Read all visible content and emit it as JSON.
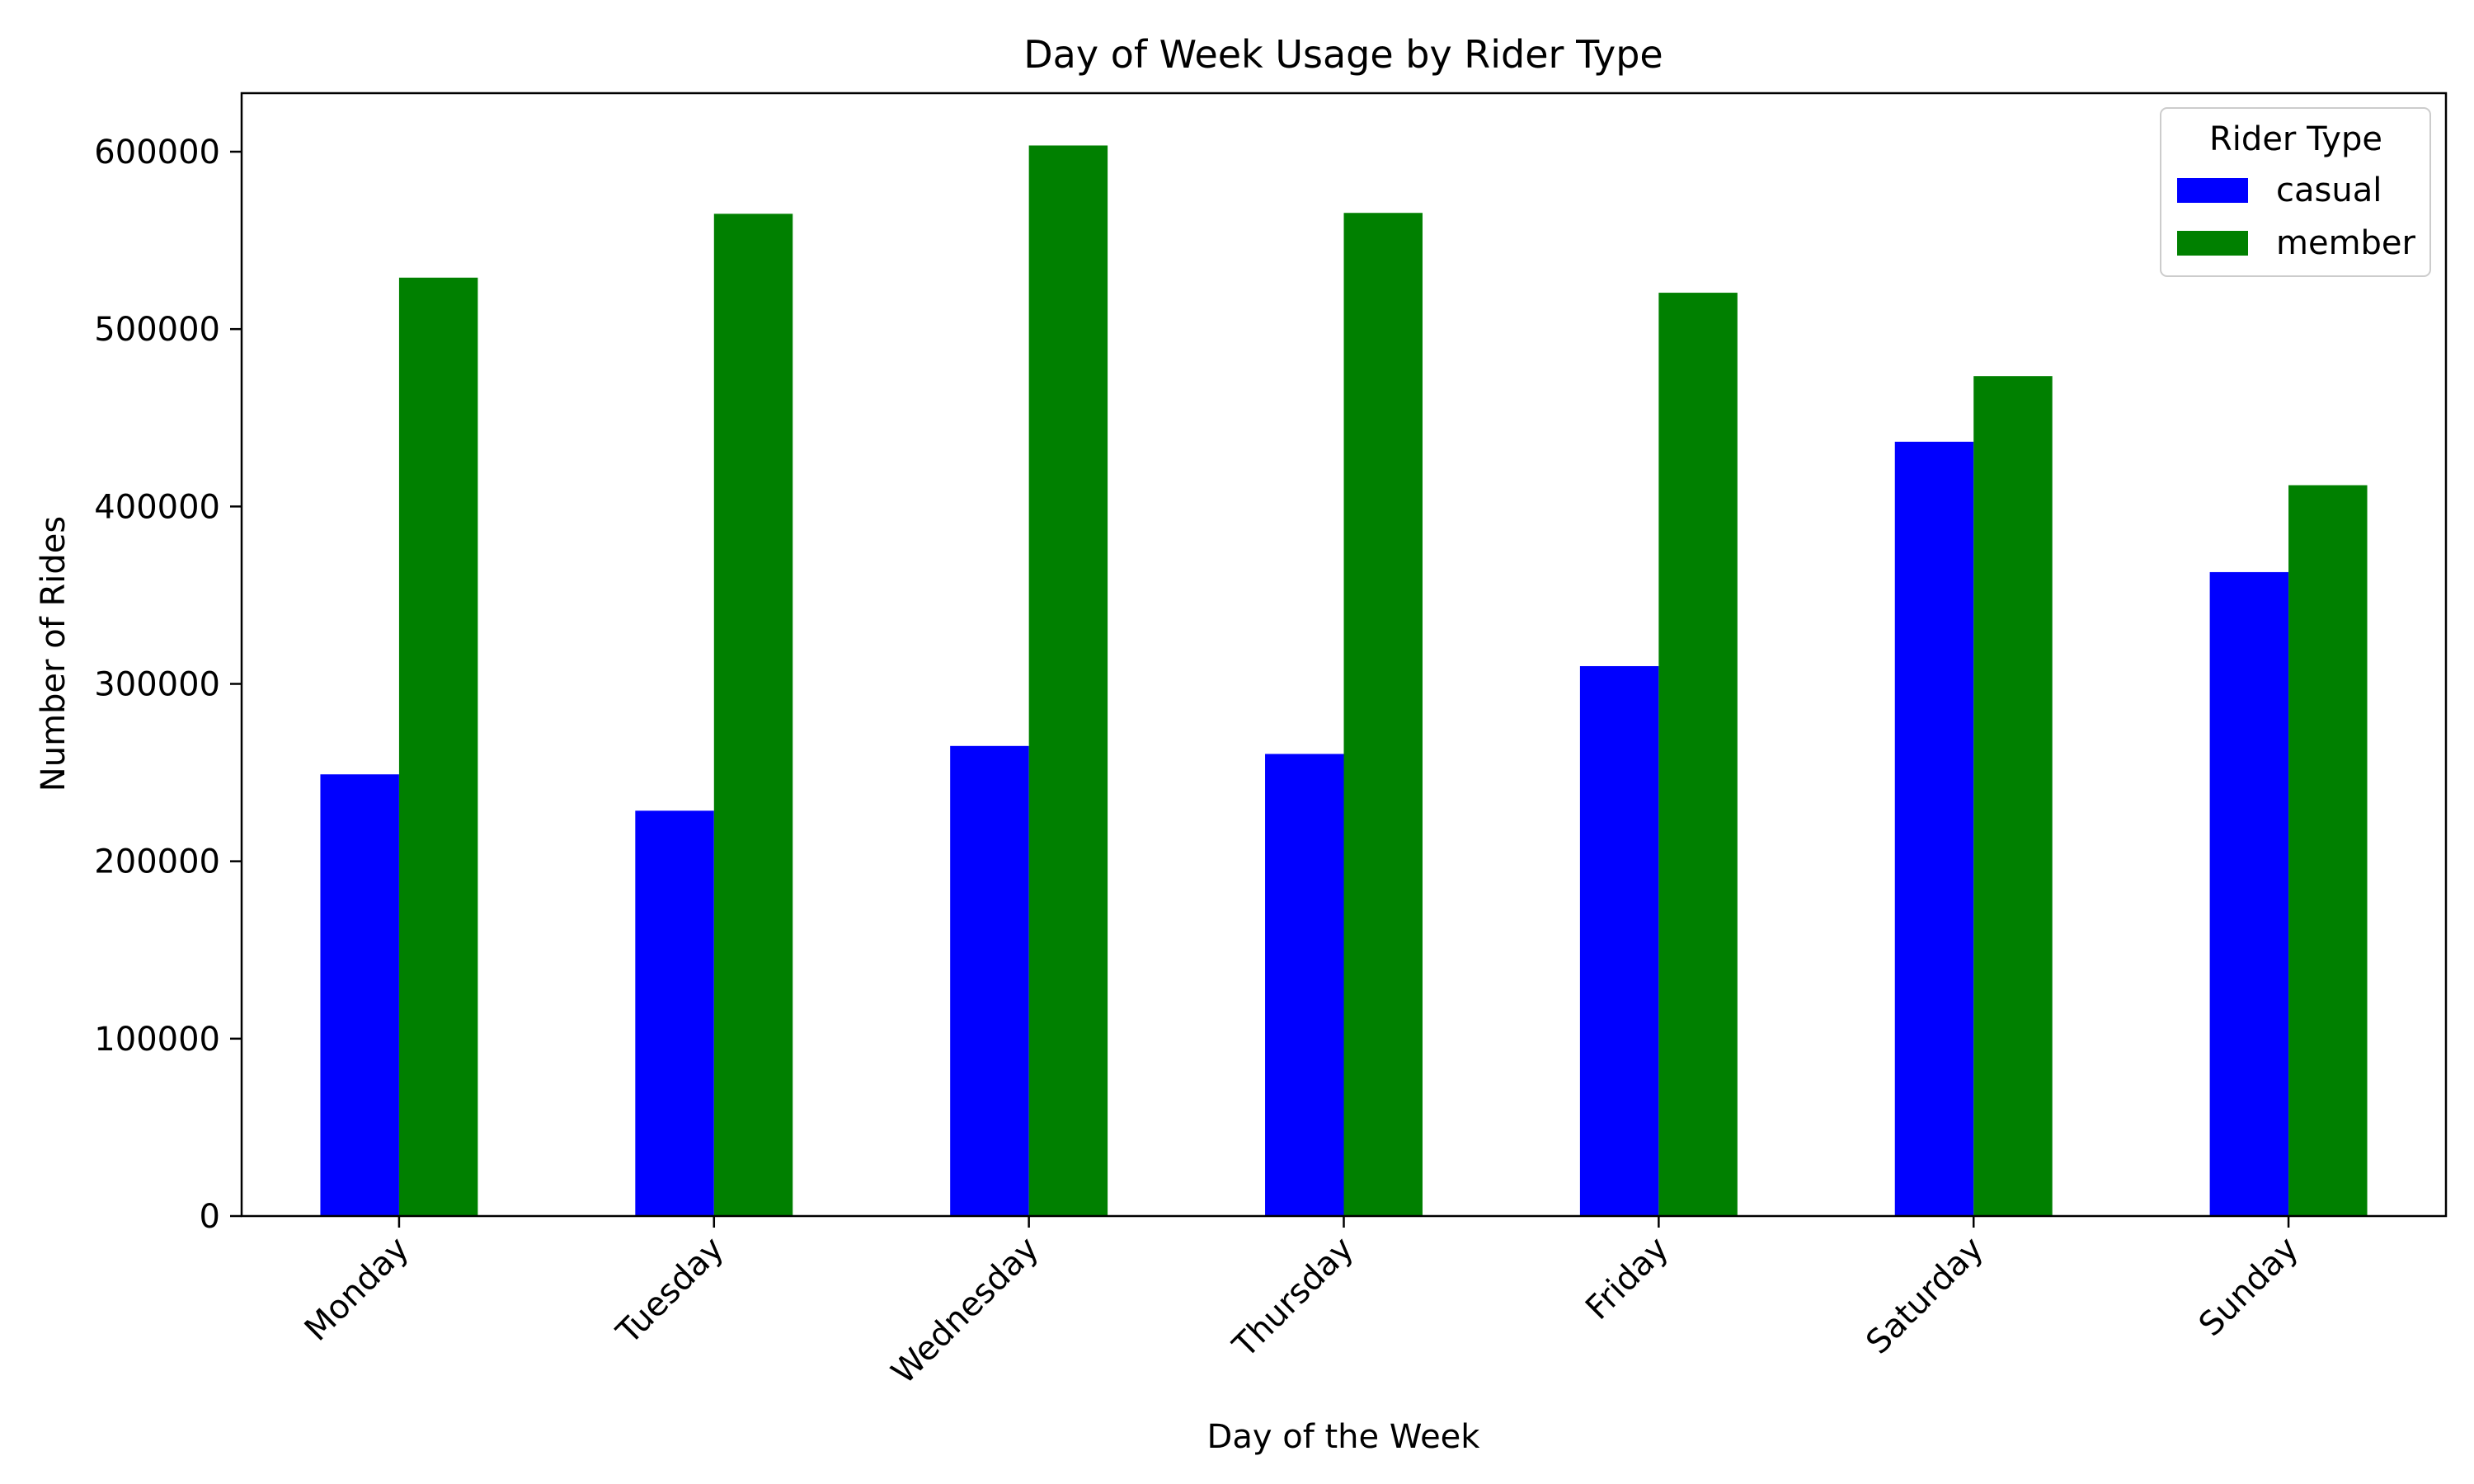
{
  "chart_data": {
    "type": "bar",
    "title": "Day of Week Usage by Rider Type",
    "xlabel": "Day of the Week",
    "ylabel": "Number of Rides",
    "categories": [
      "Monday",
      "Tuesday",
      "Wednesday",
      "Thursday",
      "Friday",
      "Saturday",
      "Sunday"
    ],
    "series": [
      {
        "name": "casual",
        "color": "#0000ff",
        "values": [
          249000,
          228500,
          265000,
          260500,
          310000,
          436500,
          363000
        ]
      },
      {
        "name": "member",
        "color": "#008000",
        "values": [
          529000,
          565000,
          603500,
          565500,
          520500,
          473500,
          412000
        ]
      }
    ],
    "ylim": [
      0,
      633000
    ],
    "yticks": [
      0,
      100000,
      200000,
      300000,
      400000,
      500000,
      600000
    ],
    "legend": {
      "title": "Rider Type",
      "placement": "top-right"
    },
    "grid": false
  }
}
